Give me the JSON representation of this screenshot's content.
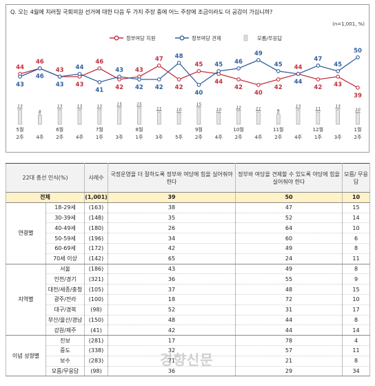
{
  "question": "Q. 오는 4월에 치러질 국회의원 선거에 대한 다음 두 가지 주장 중에 어느 주장에 조금이라도 더 공감이 가십니까?",
  "sample_note": "(n=1,001, %)",
  "watermark": "경향신문",
  "colors": {
    "support": "#c0303e",
    "check": "#2f5f9e",
    "dk": "#bdbdbd"
  },
  "chart_data": {
    "type": "line",
    "x": [
      "5월 2주",
      "4주",
      "6월 2주",
      "4주",
      "7월 1주",
      "3주",
      "8월 1주",
      "3주",
      "5주",
      "9월 2주",
      "4주",
      "10월 2주",
      "4주",
      "11월 2주",
      "4주",
      "12월 1주",
      "3주",
      "1월 2주"
    ],
    "x_top": [
      "5월",
      "",
      "6월",
      "",
      "7월",
      "",
      "8월",
      "",
      "",
      "9월",
      "",
      "10월",
      "",
      "11월",
      "",
      "12월",
      "",
      "1월"
    ],
    "x_bottom": [
      "2주",
      "4주",
      "2주",
      "4주",
      "1주",
      "3주",
      "1주",
      "3주",
      "5주",
      "2주",
      "4주",
      "2주",
      "4주",
      "2주",
      "4주",
      "1주",
      "3주",
      "2주"
    ],
    "series": [
      {
        "name": "정부여당 지원",
        "values": [
          44,
          46,
          43,
          43,
          46,
          42,
          43,
          47,
          42,
          45,
          44,
          42,
          40,
          42,
          44,
          42,
          43,
          39
        ]
      },
      {
        "name": "정부여당 견제",
        "values": [
          43,
          46,
          43,
          44,
          41,
          43,
          42,
          42,
          48,
          40,
          45,
          46,
          49,
          45,
          44,
          47,
          45,
          50
        ]
      },
      {
        "name": "모름/무응답",
        "values": [
          13,
          8,
          13,
          13,
          13,
          15,
          15,
          11,
          10,
          15,
          10,
          12,
          11,
          9,
          13,
          11,
          13,
          10
        ]
      }
    ]
  },
  "table": {
    "headers": {
      "group": "22대 총선 인식(%)",
      "n": "사례수",
      "support": "국정운영을 더 잘하도록 정부와 여당에 힘을 실어줘야 한다",
      "check": "정부와 여당을 견제할 수 있도록 야당에 힘을 실어줘야 한다",
      "dk": "모름/ 무응답"
    },
    "total": {
      "label": "전체",
      "n": "(1,001)",
      "support": "39",
      "check": "50",
      "dk": "10"
    },
    "groups": [
      {
        "name": "연령별",
        "rows": [
          {
            "label": "18-29세",
            "n": "(163)",
            "support": "38",
            "check": "47",
            "dk": "15"
          },
          {
            "label": "30-39세",
            "n": "(148)",
            "support": "35",
            "check": "52",
            "dk": "14"
          },
          {
            "label": "40-49세",
            "n": "(180)",
            "support": "26",
            "check": "64",
            "dk": "10"
          },
          {
            "label": "50-59세",
            "n": "(196)",
            "support": "34",
            "check": "60",
            "dk": "6"
          },
          {
            "label": "60-69세",
            "n": "(172)",
            "support": "42",
            "check": "49",
            "dk": "8"
          },
          {
            "label": "70세 이상",
            "n": "(142)",
            "support": "65",
            "check": "24",
            "dk": "11"
          }
        ]
      },
      {
        "name": "지역별",
        "rows": [
          {
            "label": "서울",
            "n": "(186)",
            "support": "43",
            "check": "49",
            "dk": "8"
          },
          {
            "label": "인천/경기",
            "n": "(321)",
            "support": "36",
            "check": "55",
            "dk": "9"
          },
          {
            "label": "대전/세종/충청",
            "n": "(105)",
            "support": "37",
            "check": "48",
            "dk": "15"
          },
          {
            "label": "광주/전라",
            "n": "(100)",
            "support": "18",
            "check": "72",
            "dk": "10"
          },
          {
            "label": "대구/경북",
            "n": "(98)",
            "support": "52",
            "check": "31",
            "dk": "17"
          },
          {
            "label": "부산/울산/경남",
            "n": "(150)",
            "support": "48",
            "check": "44",
            "dk": "8"
          },
          {
            "label": "강원/제주",
            "n": "(41)",
            "support": "42",
            "check": "44",
            "dk": "14"
          }
        ]
      },
      {
        "name": "이념 성향별",
        "rows": [
          {
            "label": "진보",
            "n": "(281)",
            "support": "17",
            "check": "78",
            "dk": "4"
          },
          {
            "label": "중도",
            "n": "(338)",
            "support": "32",
            "check": "57",
            "dk": "11"
          },
          {
            "label": "보수",
            "n": "(283)",
            "support": "71",
            "check": "21",
            "dk": "8"
          },
          {
            "label": "모름/무응답",
            "n": "(98)",
            "support": "36",
            "check": "29",
            "dk": "34"
          }
        ]
      }
    ]
  }
}
